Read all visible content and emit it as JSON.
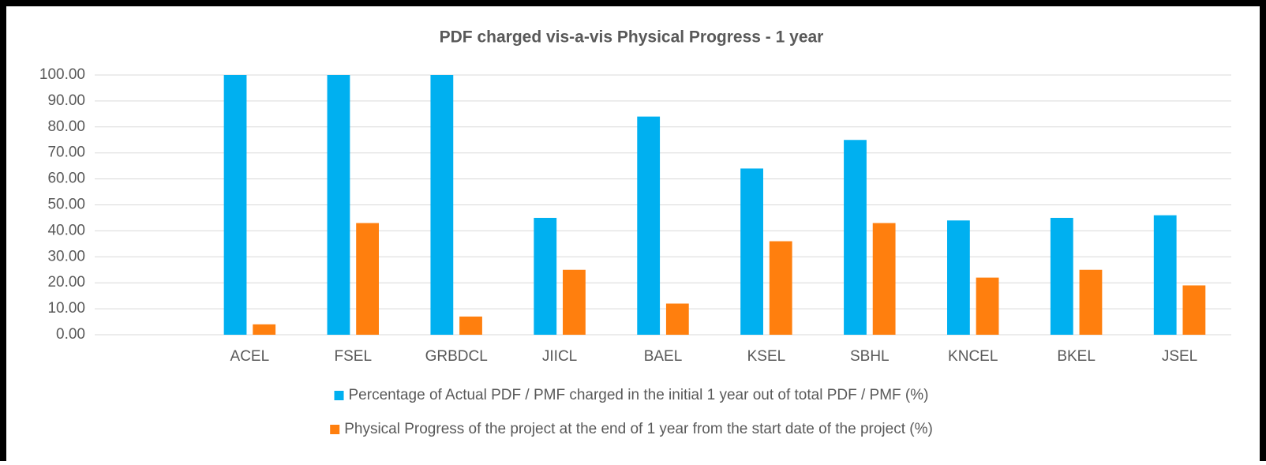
{
  "chart_data": {
    "type": "bar",
    "title": "PDF charged vis-a-vis Physical Progress - 1 year",
    "categories": [
      null,
      "ACEL",
      "FSEL",
      "GRBDCL",
      "JIICL",
      "BAEL",
      "KSEL",
      "SBHL",
      "KNCEL",
      "BKEL",
      "JSEL"
    ],
    "series": [
      {
        "name": "Percentage of Actual PDF / PMF charged in the initial 1 year out of total PDF / PMF (%)",
        "color": "#00b0f0",
        "values": [
          null,
          100,
          100,
          100,
          45,
          84,
          64,
          75,
          44,
          45,
          46
        ]
      },
      {
        "name": "Physical Progress of the project at the end of 1 year from the start date of the project (%)",
        "color": "#ff7f0e",
        "values": [
          null,
          4,
          43,
          7,
          25,
          12,
          36,
          43,
          22,
          25,
          19
        ]
      }
    ],
    "ylim": [
      0,
      100
    ],
    "yticks": [
      {
        "value": 0,
        "label": "0.00"
      },
      {
        "value": 10,
        "label": "10.00"
      },
      {
        "value": 20,
        "label": "20.00"
      },
      {
        "value": 30,
        "label": "30.00"
      },
      {
        "value": 40,
        "label": "40.00"
      },
      {
        "value": 50,
        "label": "50.00"
      },
      {
        "value": 60,
        "label": "60.00"
      },
      {
        "value": 70,
        "label": "70.00"
      },
      {
        "value": 80,
        "label": "80.00"
      },
      {
        "value": 90,
        "label": "90.00"
      },
      {
        "value": 100,
        "label": "100.00"
      }
    ],
    "grid": true,
    "legend": "bottom"
  }
}
